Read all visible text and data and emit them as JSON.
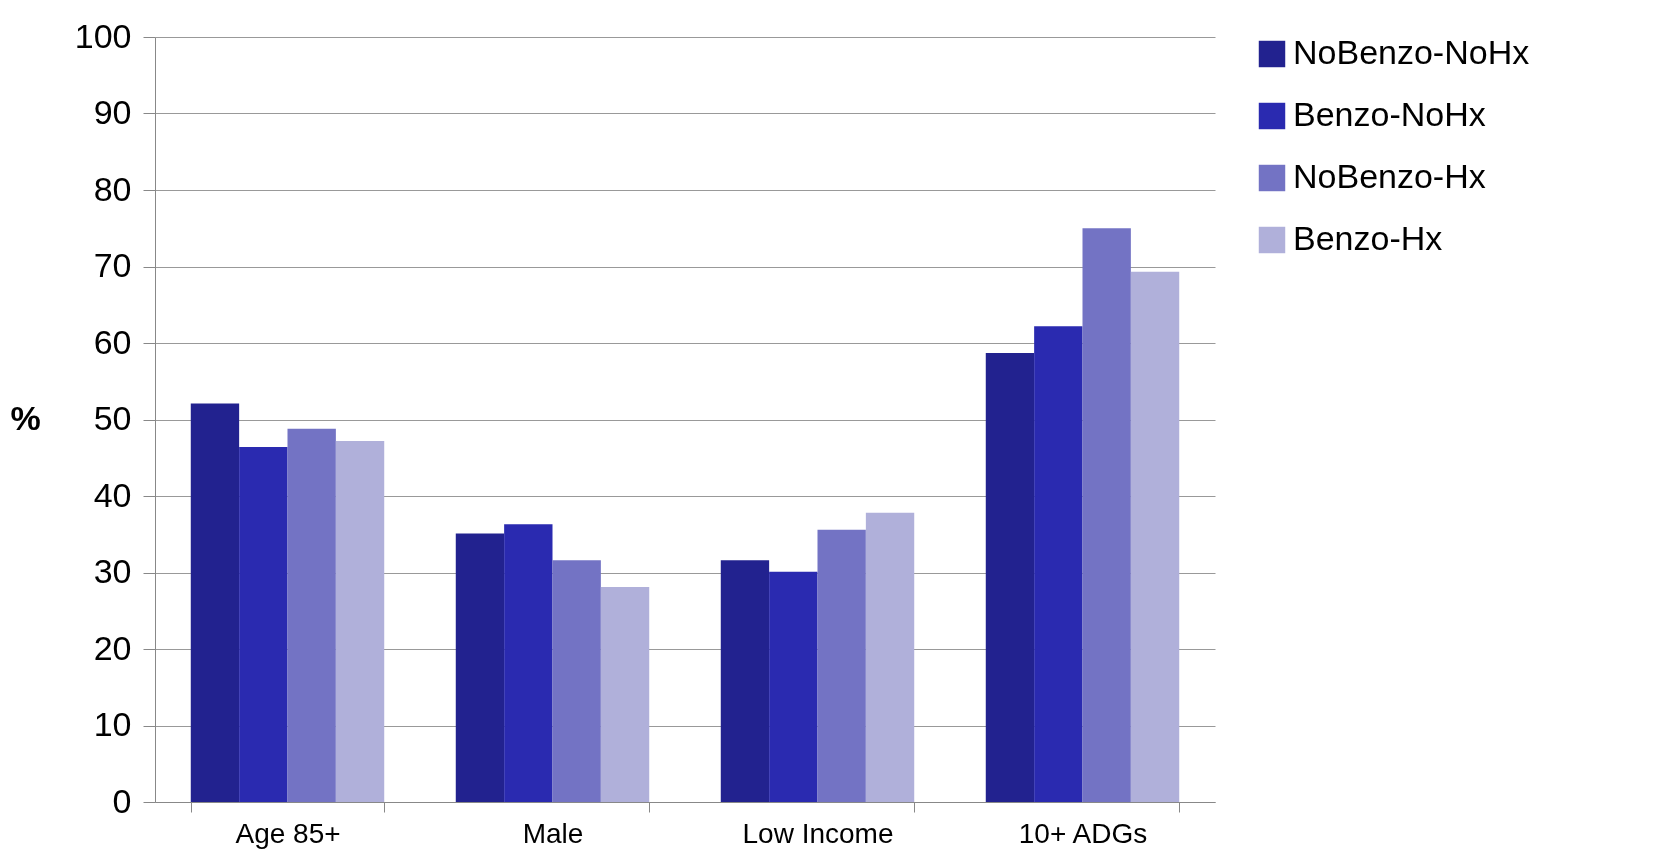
{
  "chart_data": {
    "type": "bar",
    "ylabel": "%",
    "categories": [
      "Age 85+",
      "Male",
      "Low Income",
      "10+ ADGs"
    ],
    "series": [
      {
        "name": "NoBenzo-NoHx",
        "color": "#22228f",
        "values": [
          52.1,
          35.1,
          31.6,
          58.7
        ]
      },
      {
        "name": "Benzo-NoHx",
        "color": "#2a2ab0",
        "values": [
          46.4,
          36.3,
          30.1,
          62.2
        ]
      },
      {
        "name": "NoBenzo-Hx",
        "color": "#7373c4",
        "values": [
          48.8,
          31.6,
          35.6,
          75.0
        ]
      },
      {
        "name": "Benzo-Hx",
        "color": "#b0b0da",
        "values": [
          47.2,
          28.1,
          37.8,
          69.3
        ]
      }
    ],
    "ylim": [
      0,
      100
    ],
    "yticks": [
      0,
      10,
      20,
      30,
      40,
      50,
      60,
      70,
      80,
      90,
      100
    ],
    "grid": "y",
    "legend": "right"
  }
}
